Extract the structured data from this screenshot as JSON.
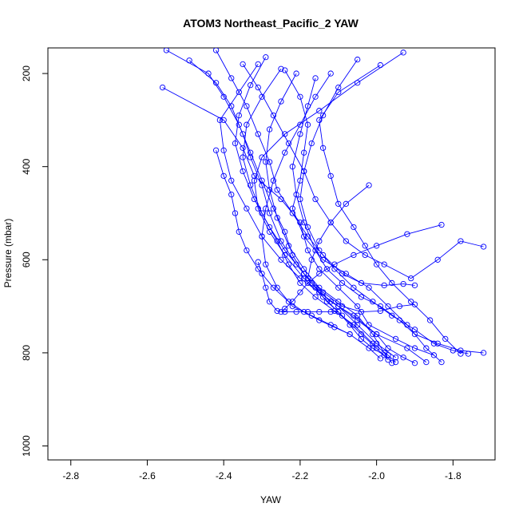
{
  "chart_data": {
    "type": "line",
    "title": "ATOM3 Northeast_Pacific_2 YAW",
    "xlabel": "YAW",
    "ylabel": "Pressure (mbar)",
    "xlim": [
      -2.86,
      -1.69
    ],
    "ylim": [
      1030,
      145
    ],
    "y_inverted": true,
    "x_ticks": [
      -2.8,
      -2.6,
      -2.4,
      -2.2,
      -2.0,
      -1.8
    ],
    "x_tick_labels": [
      "-2.8",
      "-2.6",
      "-2.4",
      "-2.2",
      "-2.0",
      "-1.8"
    ],
    "y_ticks": [
      200,
      400,
      600,
      800,
      1000
    ],
    "y_tick_labels": [
      "200",
      "400",
      "600",
      "800",
      "1000"
    ],
    "series_color": "#0000ff",
    "marker": "open-circle",
    "series": [
      {
        "x": [
          -2.56,
          -2.4,
          -2.35,
          -2.32,
          -2.25,
          -2.2,
          -2.18,
          -2.15,
          -2.1,
          -2.05,
          -2.02,
          -1.95,
          -1.9,
          -1.85
        ],
        "y": [
          230,
          300,
          360,
          420,
          470,
          520,
          580,
          620,
          660,
          700,
          740,
          770,
          790,
          805
        ]
      },
      {
        "x": [
          -2.55,
          -2.44,
          -2.4,
          -2.36,
          -2.33,
          -2.3,
          -2.27,
          -2.24,
          -2.22,
          -2.19,
          -2.15,
          -2.1,
          -2.05,
          -2.0,
          -1.95
        ],
        "y": [
          150,
          200,
          250,
          310,
          370,
          430,
          490,
          540,
          590,
          630,
          670,
          700,
          740,
          780,
          810
        ]
      },
      {
        "x": [
          -2.49,
          -2.42,
          -2.38,
          -2.35,
          -2.33,
          -2.3,
          -2.28,
          -2.25,
          -2.21,
          -2.17,
          -2.12,
          -2.06,
          -2.0,
          -1.92,
          -1.87
        ],
        "y": [
          172,
          220,
          270,
          330,
          380,
          440,
          500,
          560,
          610,
          650,
          690,
          720,
          760,
          790,
          820
        ]
      },
      {
        "x": [
          -2.31,
          -2.36,
          -2.41,
          -2.4,
          -2.38,
          -2.34,
          -2.3,
          -2.25,
          -2.2,
          -2.15,
          -2.1,
          -2.05,
          -2.0,
          -1.97,
          -1.93,
          -1.9
        ],
        "y": [
          180,
          240,
          300,
          365,
          430,
          490,
          550,
          600,
          640,
          670,
          700,
          730,
          760,
          790,
          810,
          822
        ]
      },
      {
        "x": [
          -2.25,
          -2.3,
          -2.34,
          -2.35,
          -2.33,
          -2.3,
          -2.26,
          -2.23,
          -2.2,
          -2.16,
          -2.11,
          -2.06,
          -2.01,
          -1.97,
          -1.95
        ],
        "y": [
          190,
          250,
          310,
          380,
          440,
          500,
          560,
          610,
          650,
          680,
          710,
          740,
          780,
          805,
          820
        ]
      },
      {
        "x": [
          -2.21,
          -2.25,
          -2.28,
          -2.29,
          -2.28,
          -2.26,
          -2.23,
          -2.19,
          -2.15,
          -2.1,
          -2.05,
          -2.01,
          -1.98,
          -1.96
        ],
        "y": [
          200,
          260,
          320,
          390,
          450,
          510,
          570,
          620,
          660,
          690,
          720,
          760,
          800,
          822
        ]
      },
      {
        "x": [
          -2.16,
          -2.18,
          -2.2,
          -2.22,
          -2.21,
          -2.19,
          -2.16,
          -2.13,
          -2.09,
          -2.04,
          -1.99,
          -1.94,
          -1.9,
          -1.84,
          -1.78,
          -1.72
        ],
        "y": [
          210,
          270,
          330,
          400,
          460,
          520,
          580,
          620,
          650,
          680,
          700,
          730,
          760,
          780,
          795,
          800
        ]
      },
      {
        "x": [
          -2.05,
          -2.1,
          -2.14,
          -2.17,
          -2.19,
          -2.2,
          -2.18,
          -2.15,
          -2.11,
          -2.06,
          -2.01,
          -1.96,
          -1.9,
          -1.85,
          -1.8,
          -1.76
        ],
        "y": [
          170,
          230,
          290,
          350,
          410,
          470,
          530,
          580,
          620,
          660,
          690,
          720,
          750,
          780,
          795,
          802
        ]
      },
      {
        "x": [
          -1.99,
          -2.1,
          -2.15,
          -2.14,
          -2.12,
          -2.1,
          -2.06,
          -2.03,
          -2.0,
          -1.96,
          -1.91,
          -1.86,
          -1.82,
          -1.78
        ],
        "y": [
          182,
          240,
          300,
          360,
          420,
          480,
          530,
          570,
          610,
          650,
          690,
          730,
          770,
          802
        ]
      },
      {
        "x": [
          -1.93,
          -2.05,
          -2.15,
          -2.24,
          -2.3,
          -2.32,
          -2.31,
          -2.28,
          -2.24,
          -2.19,
          -2.14,
          -2.09,
          -2.04,
          -2.0,
          -1.97
        ],
        "y": [
          155,
          220,
          280,
          330,
          380,
          430,
          490,
          540,
          590,
          640,
          680,
          720,
          760,
          790,
          815
        ]
      },
      {
        "x": [
          -2.24,
          -2.2,
          -2.18,
          -2.19,
          -2.2,
          -2.22,
          -2.19,
          -2.14,
          -2.08,
          -2.02,
          -1.97,
          -1.92,
          -1.87,
          -1.83
        ],
        "y": [
          193,
          250,
          310,
          370,
          430,
          490,
          550,
          600,
          630,
          660,
          700,
          740,
          790,
          820
        ]
      },
      {
        "x": [
          -2.35,
          -2.31,
          -2.27,
          -2.23,
          -2.19,
          -2.16,
          -2.12,
          -2.08,
          -2.03,
          -1.98,
          -1.91,
          -1.84,
          -1.78,
          -1.72
        ],
        "y": [
          180,
          230,
          290,
          350,
          410,
          470,
          520,
          560,
          590,
          610,
          640,
          600,
          560,
          572
        ]
      },
      {
        "x": [
          -2.42,
          -2.38,
          -2.34,
          -2.31,
          -2.28,
          -2.26,
          -2.22,
          -2.18,
          -2.14,
          -2.09,
          -2.04,
          -1.98,
          -1.93,
          -1.9
        ],
        "y": [
          150,
          210,
          270,
          330,
          390,
          450,
          500,
          550,
          590,
          630,
          650,
          655,
          652,
          655
        ]
      },
      {
        "x": [
          -2.29,
          -2.33,
          -2.36,
          -2.37,
          -2.35,
          -2.32,
          -2.28,
          -2.24,
          -2.19,
          -2.14,
          -2.09,
          -2.04,
          -1.99,
          -1.94,
          -1.9
        ],
        "y": [
          165,
          225,
          290,
          350,
          410,
          470,
          530,
          580,
          630,
          670,
          700,
          712,
          710,
          700,
          696
        ]
      },
      {
        "x": [
          -2.12,
          -2.16,
          -2.2,
          -2.24,
          -2.27,
          -2.29,
          -2.3,
          -2.29,
          -2.26,
          -2.22,
          -2.17,
          -2.12,
          -2.07,
          -2.02,
          -1.99
        ],
        "y": [
          200,
          250,
          310,
          370,
          430,
          490,
          550,
          610,
          660,
          700,
          720,
          740,
          760,
          790,
          812
        ]
      },
      {
        "x": [
          -2.02,
          -2.08,
          -2.12,
          -2.15,
          -2.17,
          -2.18,
          -2.16,
          -2.13,
          -2.1,
          -2.07,
          -2.04,
          -2.01,
          -1.98
        ],
        "y": [
          440,
          480,
          520,
          560,
          600,
          640,
          660,
          690,
          712,
          740,
          770,
          790,
          805
        ]
      },
      {
        "x": [
          -1.83,
          -1.92,
          -2.0,
          -2.06,
          -2.11,
          -2.15,
          -2.18,
          -2.2,
          -2.22,
          -2.24,
          -2.25
        ],
        "y": [
          525,
          545,
          570,
          590,
          610,
          630,
          650,
          670,
          690,
          705,
          712
        ]
      },
      {
        "x": [
          -2.42,
          -2.4,
          -2.38,
          -2.37,
          -2.36,
          -2.34,
          -2.31,
          -2.27,
          -2.23,
          -2.19,
          -2.15,
          -2.11,
          -2.07
        ],
        "y": [
          365,
          420,
          460,
          500,
          540,
          580,
          620,
          660,
          690,
          712,
          730,
          745,
          760
        ]
      },
      {
        "x": [
          -2.31,
          -2.3,
          -2.29,
          -2.28,
          -2.26,
          -2.24,
          -2.21,
          -2.18,
          -2.15,
          -2.12,
          -2.1
        ],
        "y": [
          605,
          630,
          660,
          690,
          710,
          712,
          712,
          712,
          712,
          712,
          712
        ]
      }
    ]
  }
}
